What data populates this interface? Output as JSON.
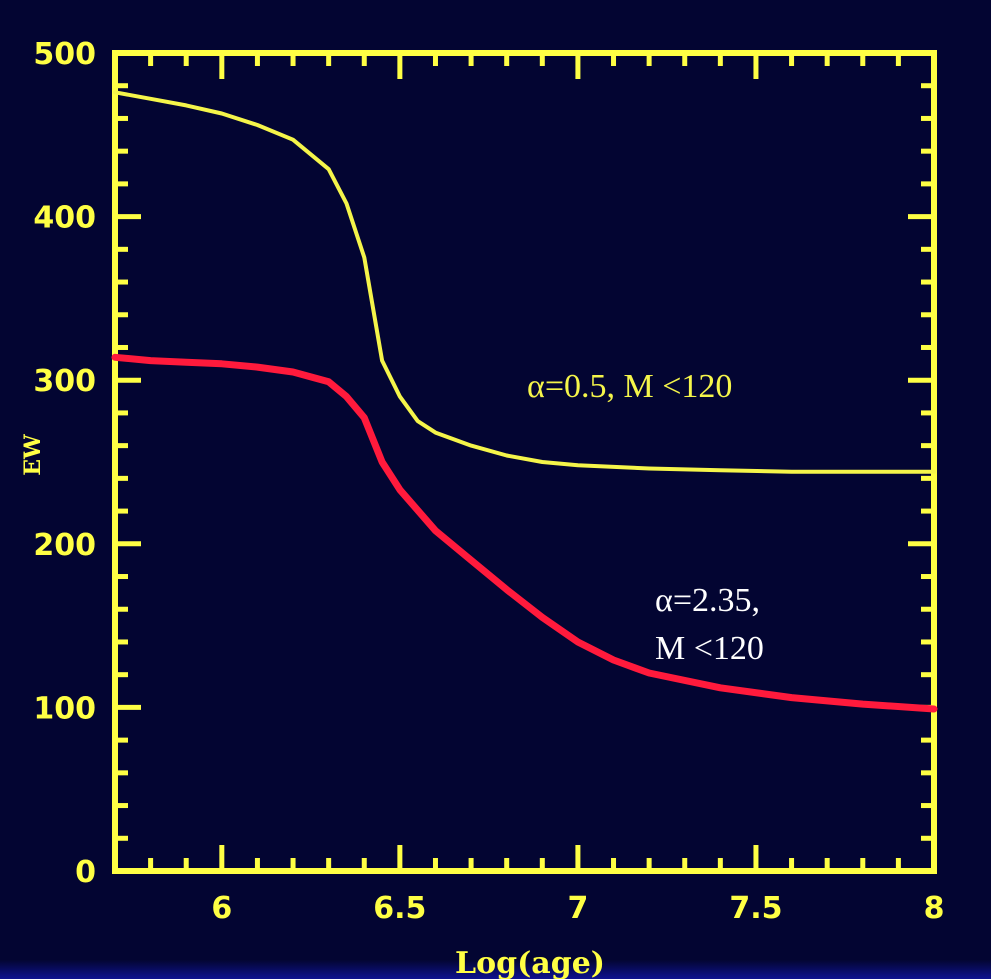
{
  "colors": {
    "background": "#030532",
    "frame": "#ffff44",
    "series_yellow": "#f5f54a",
    "series_red": "#ff1a3c"
  },
  "chart_data": {
    "type": "line",
    "title": "",
    "xlabel": "Log(age)",
    "ylabel": "EW",
    "xlim": [
      5.7,
      8.0
    ],
    "ylim": [
      0,
      500
    ],
    "xticks": [
      "6",
      "6.5",
      "7",
      "7.5",
      "8"
    ],
    "yticks": [
      "0",
      "100",
      "200",
      "300",
      "400",
      "500"
    ],
    "grid": false,
    "series": [
      {
        "color": "#f5f54a",
        "x": [
          5.7,
          5.8,
          5.9,
          6.0,
          6.1,
          6.2,
          6.3,
          6.35,
          6.4,
          6.45,
          6.5,
          6.55,
          6.6,
          6.7,
          6.8,
          6.9,
          7.0,
          7.2,
          7.4,
          7.6,
          7.8,
          8.0
        ],
        "y": [
          476,
          472,
          468,
          463,
          456,
          447,
          429,
          408,
          375,
          312,
          290,
          275,
          268,
          260,
          254,
          250,
          248,
          246,
          245,
          244,
          244,
          244
        ]
      },
      {
        "color": "#ff1a3c",
        "x": [
          5.7,
          5.8,
          5.9,
          6.0,
          6.1,
          6.2,
          6.3,
          6.35,
          6.4,
          6.45,
          6.5,
          6.6,
          6.7,
          6.8,
          6.9,
          7.0,
          7.1,
          7.2,
          7.4,
          7.6,
          7.8,
          8.0
        ],
        "y": [
          314,
          312,
          311,
          310,
          308,
          305,
          299,
          290,
          277,
          250,
          233,
          208,
          190,
          172,
          155,
          140,
          129,
          121,
          112,
          106,
          102,
          99
        ]
      }
    ],
    "annotations": [
      {
        "text": "α=0.5,  M <120",
        "color": "#f5f54a"
      },
      {
        "text": "α=2.35,",
        "color": "#ffffff"
      },
      {
        "text": "M <120",
        "color": "#ffffff"
      }
    ]
  }
}
